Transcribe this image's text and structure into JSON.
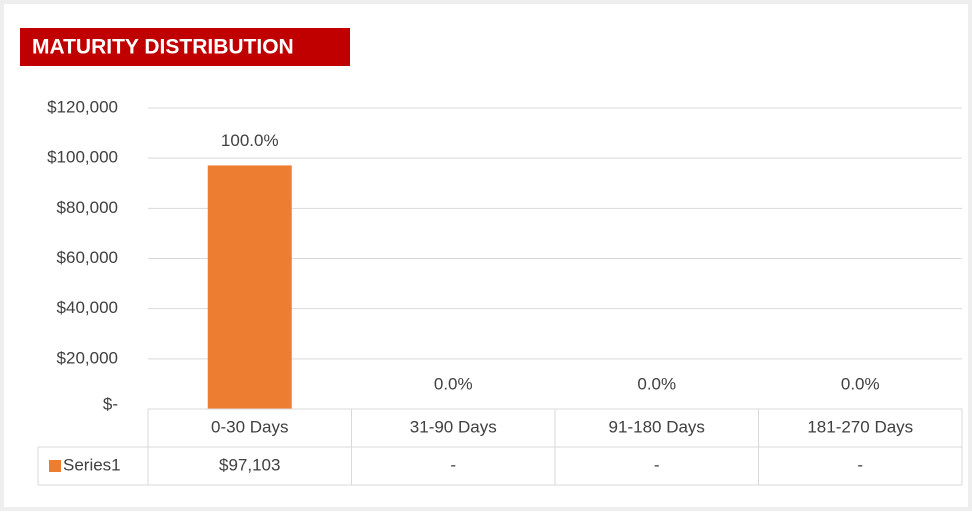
{
  "chart_data": {
    "type": "bar",
    "title": "MATURITY DISTRIBUTION",
    "categories": [
      "0-30 Days",
      "31-90 Days",
      "91-180 Days",
      "181-270 Days"
    ],
    "series": [
      {
        "name": "Series1",
        "color": "#ed7d31",
        "values": [
          97103,
          0,
          0,
          0
        ],
        "value_labels": [
          "$97,103",
          "-",
          "-",
          "-"
        ],
        "data_labels": [
          "100.0%",
          "0.0%",
          "0.0%",
          "0.0%"
        ]
      }
    ],
    "ylim": [
      0,
      120000
    ],
    "yticks": [
      {
        "value": 0,
        "label": "$-"
      },
      {
        "value": 20000,
        "label": "$20,000"
      },
      {
        "value": 40000,
        "label": "$40,000"
      },
      {
        "value": 60000,
        "label": "$60,000"
      },
      {
        "value": 80000,
        "label": "$80,000"
      },
      {
        "value": 100000,
        "label": "$100,000"
      },
      {
        "value": 120000,
        "label": "$120,000"
      }
    ],
    "grid": true,
    "data_table": true
  }
}
